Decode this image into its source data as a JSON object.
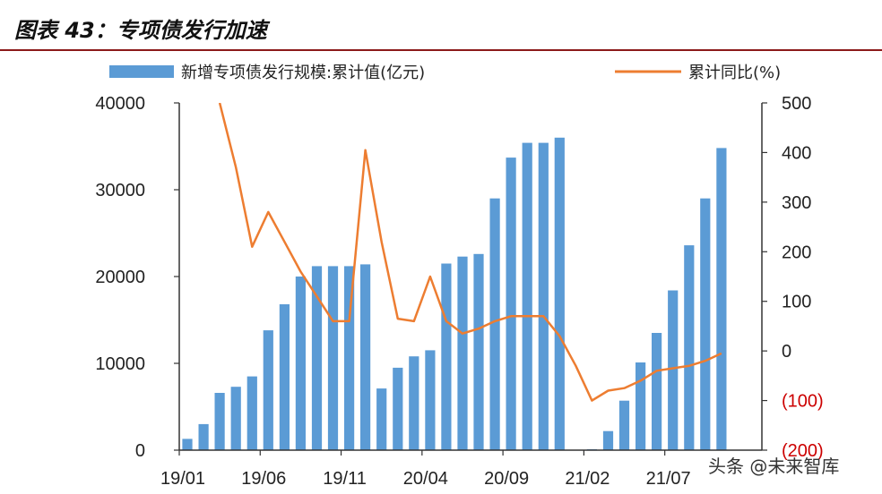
{
  "title": "图表 43：专项债发行加速",
  "watermark": "头条 @未来智库",
  "colors": {
    "bar": "#5b9bd5",
    "line": "#ed7d31",
    "axis": "#333333",
    "negative_tick": "#cc0000",
    "title_rule": "#8b1a1a"
  },
  "chart_data": {
    "type": "bar",
    "legend": [
      {
        "label": "新增专项债发行规模:累计值(亿元)",
        "kind": "bar",
        "color": "#5b9bd5"
      },
      {
        "label": "累计同比(%)",
        "kind": "line",
        "color": "#ed7d31"
      }
    ],
    "x_tick_labels": [
      "19/01",
      "19/06",
      "19/11",
      "20/04",
      "20/09",
      "21/02",
      "21/07"
    ],
    "y_left_ticks": [
      "0",
      "10000",
      "20000",
      "30000",
      "40000"
    ],
    "y_right_ticks": [
      "(200)",
      "(100)",
      "0",
      "100",
      "200",
      "300",
      "400",
      "500"
    ],
    "ylim_left": [
      0,
      40000
    ],
    "ylim_right": [
      -200,
      500
    ],
    "categories": [
      "19/01",
      "19/02",
      "19/03",
      "19/04",
      "19/05",
      "19/06",
      "19/07",
      "19/08",
      "19/09",
      "19/10",
      "19/11",
      "19/12",
      "20/01",
      "20/02",
      "20/03",
      "20/04",
      "20/05",
      "20/06",
      "20/07",
      "20/08",
      "20/09",
      "20/10",
      "20/11",
      "20/12",
      "21/01",
      "21/02",
      "21/03",
      "21/04",
      "21/05",
      "21/06",
      "21/07",
      "21/08",
      "21/09",
      "21/10",
      "21/11",
      "21/12"
    ],
    "series": [
      {
        "name": "新增专项债发行规模:累计值(亿元)",
        "type": "bar",
        "axis": "left",
        "values": [
          1300,
          3000,
          6600,
          7300,
          8500,
          13800,
          16800,
          20000,
          21200,
          21200,
          21200,
          21400,
          7100,
          9500,
          10800,
          11500,
          21500,
          22300,
          22600,
          29000,
          33700,
          35400,
          35400,
          36000,
          null,
          100,
          2200,
          5700,
          10100,
          13500,
          18400,
          23600,
          29000,
          34800,
          null,
          null
        ]
      },
      {
        "name": "累计同比(%)",
        "type": "line",
        "axis": "right",
        "values": [
          null,
          null,
          500,
          370,
          210,
          280,
          220,
          160,
          110,
          60,
          60,
          405,
          220,
          65,
          60,
          150,
          60,
          35,
          45,
          60,
          70,
          70,
          70,
          30,
          -30,
          -100,
          -80,
          -75,
          -60,
          -40,
          -35,
          -30,
          -20,
          -5,
          null,
          null
        ]
      }
    ]
  }
}
